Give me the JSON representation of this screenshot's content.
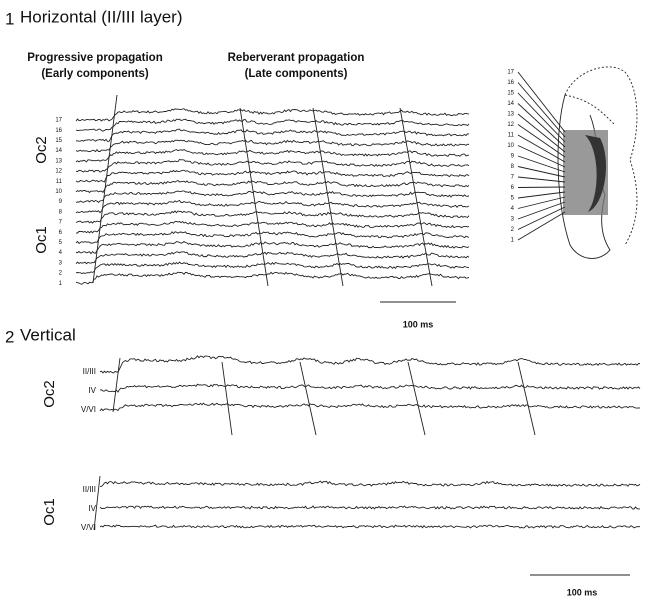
{
  "panel1": {
    "number": "1",
    "title": "Horizontal (II/III layer)",
    "early_label": [
      "Progressive propagation",
      "(Early components)"
    ],
    "late_label": [
      "Reberverant propagation",
      "(Late components)"
    ],
    "area_top": "Oc2",
    "area_bottom": "Oc1",
    "channels": [
      17,
      16,
      15,
      14,
      13,
      12,
      11,
      10,
      9,
      8,
      7,
      6,
      5,
      4,
      3,
      2,
      1
    ],
    "diagram_channels": [
      17,
      16,
      15,
      14,
      13,
      12,
      11,
      10,
      9,
      8,
      7,
      6,
      5,
      4,
      3,
      2,
      1
    ],
    "scale_label": "100 ms"
  },
  "panel2": {
    "number": "2",
    "title": "Vertical",
    "groups": [
      {
        "area": "Oc2",
        "layers": [
          "II/III",
          "IV",
          "V/VI"
        ]
      },
      {
        "area": "Oc1",
        "layers": [
          "II/III",
          "IV",
          "V/VI"
        ]
      }
    ],
    "scale_label": "100 ms"
  }
}
